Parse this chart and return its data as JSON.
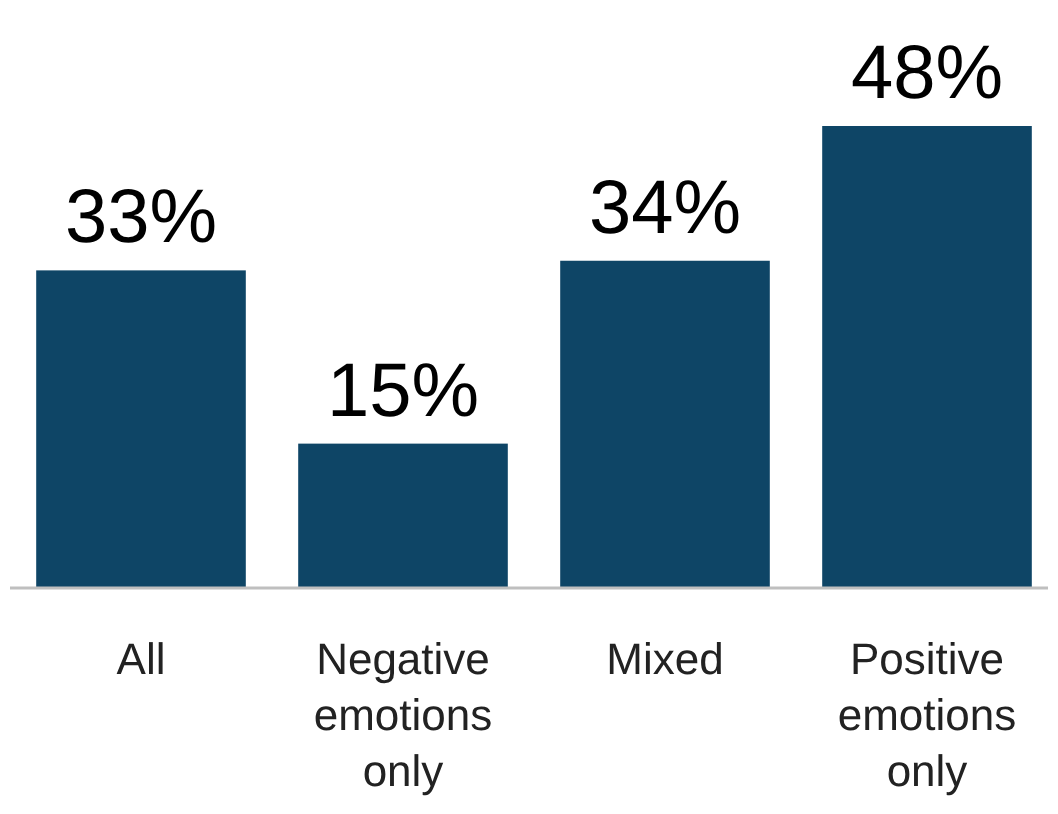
{
  "chart_data": {
    "type": "bar",
    "categories": [
      "All",
      "Negative emotions only",
      "Mixed",
      "Positive emotions only"
    ],
    "values": [
      33,
      15,
      34,
      48
    ],
    "value_labels": [
      "33%",
      "15%",
      "34%",
      "48%"
    ],
    "color": "#0e4566"
  }
}
